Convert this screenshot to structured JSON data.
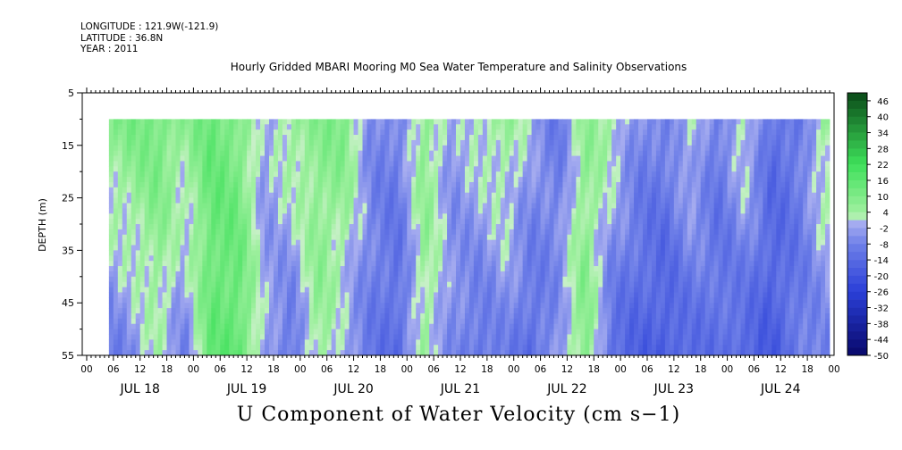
{
  "header": {
    "longitude_line": "LONGITUDE : 121.9W(-121.9)",
    "latitude_line": "LATITUDE : 36.8N",
    "year_line": "YEAR : 2011",
    "title": "Hourly Gridded MBARI Mooring M0 Sea Water Temperature and Salinity Observations"
  },
  "chart_data": {
    "type": "heatmap",
    "title": "Hourly Gridded MBARI Mooring M0 Sea Water Temperature and Salinity Observations",
    "footer_title": "U Component of Water Velocity (cm s−1)",
    "ylabel": "DEPTH (m)",
    "ylim": [
      55,
      5
    ],
    "y_tick_labels": [
      "5",
      "15",
      "25",
      "35",
      "45",
      "55"
    ],
    "y_tick_values": [
      5,
      15,
      25,
      35,
      45,
      55
    ],
    "x_hour_labels": [
      "00",
      "06",
      "12",
      "18",
      "00",
      "06",
      "12",
      "18",
      "00",
      "06",
      "12",
      "18",
      "00",
      "06",
      "12",
      "18",
      "00",
      "06",
      "12",
      "18",
      "00",
      "06",
      "12",
      "18",
      "00",
      "06",
      "12",
      "18",
      "00",
      "06",
      "12",
      "18"
    ],
    "x_hour_values": [
      0,
      6,
      12,
      18,
      24,
      30,
      36,
      42,
      48,
      54,
      60,
      66,
      72,
      78,
      84,
      90,
      96,
      102,
      108,
      114,
      120,
      126,
      132,
      138,
      144,
      150,
      156,
      162,
      168,
      174,
      180,
      186
    ],
    "x_day_labels": [
      "JUL 18",
      "JUL 19",
      "JUL 20",
      "JUL 21",
      "JUL 22",
      "JUL 23",
      "JUL 24"
    ],
    "x_day_values": [
      12,
      36,
      60,
      84,
      108,
      132,
      156
    ],
    "xlim": [
      -1,
      168
    ],
    "data_x_range": [
      5,
      167
    ],
    "data_depth_range": [
      10,
      55
    ],
    "grid": false,
    "colorbar": {
      "labels": [
        "46",
        "40",
        "34",
        "28",
        "22",
        "16",
        "10",
        "4",
        "-2",
        "-8",
        "-14",
        "-20",
        "-26",
        "-32",
        "-38",
        "-44",
        "-50"
      ],
      "levels": [
        49,
        46,
        43,
        40,
        37,
        34,
        31,
        28,
        25,
        22,
        19,
        16,
        13,
        10,
        7,
        4,
        1,
        -2,
        -5,
        -8,
        -11,
        -14,
        -17,
        -20,
        -23,
        -26,
        -29,
        -32,
        -35,
        -38,
        -41,
        -44,
        -47,
        -50
      ]
    },
    "colors": {
      "pos_light": "#9ff09f",
      "pos_mid": "#3ee05a",
      "pos_dark": "#0a4a18",
      "neg_light": "#a8aef0",
      "neg_mid": "#6f80e8",
      "neg_dark": "#08086a",
      "zero": "#c8f0c8"
    },
    "field_profile": {
      "hours": [
        5,
        10,
        16,
        22,
        28,
        34,
        40,
        46,
        52,
        58,
        64,
        70,
        76,
        82,
        88,
        94,
        100,
        106,
        112,
        118,
        124,
        130,
        136,
        142,
        148,
        154,
        160,
        166
      ],
      "u_surface": [
        8,
        10,
        12,
        6,
        14,
        10,
        -4,
        6,
        8,
        10,
        -6,
        -8,
        8,
        -4,
        2,
        6,
        -2,
        -10,
        6,
        4,
        -6,
        -8,
        2,
        -10,
        4,
        -12,
        -10,
        6
      ],
      "u_bottom": [
        -10,
        -6,
        2,
        -8,
        14,
        16,
        -2,
        -12,
        6,
        -4,
        -10,
        -14,
        4,
        -6,
        -12,
        -8,
        -14,
        -4,
        10,
        -14,
        -16,
        -18,
        -14,
        -12,
        -16,
        -18,
        -10,
        -8
      ]
    }
  }
}
